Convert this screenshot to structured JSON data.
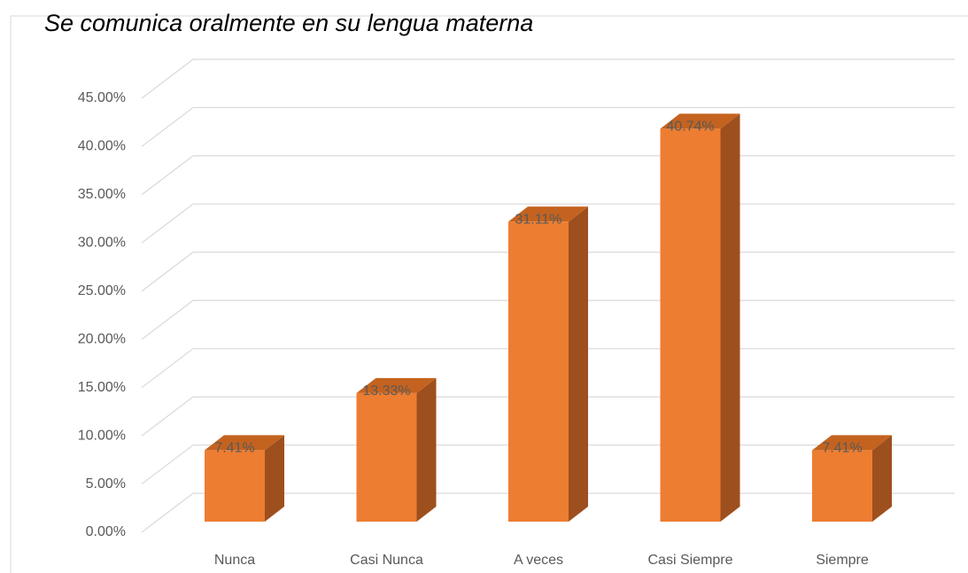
{
  "chart_data": {
    "type": "bar3d",
    "title": "Se comunica oralmente en su lengua materna",
    "categories": [
      "Nunca",
      "Casi Nunca",
      "A veces",
      "Casi Siempre",
      "Siempre"
    ],
    "values": [
      7.41,
      13.33,
      31.11,
      40.74,
      7.41
    ],
    "value_labels": [
      "7.41%",
      "13.33%",
      "31.11%",
      "40.74%",
      "7.41%"
    ],
    "color": "#ed7d31",
    "ylim": [
      0,
      45
    ],
    "yticks": [
      {
        "value": 0,
        "label": "0.00%"
      },
      {
        "value": 5,
        "label": "5.00%"
      },
      {
        "value": 10,
        "label": "10.00%"
      },
      {
        "value": 15,
        "label": "15.00%"
      },
      {
        "value": 20,
        "label": "20.00%"
      },
      {
        "value": 25,
        "label": "25.00%"
      },
      {
        "value": 30,
        "label": "30.00%"
      },
      {
        "value": 35,
        "label": "35.00%"
      },
      {
        "value": 40,
        "label": "40.00%"
      },
      {
        "value": 45,
        "label": "45.00%"
      }
    ],
    "grid": true
  }
}
